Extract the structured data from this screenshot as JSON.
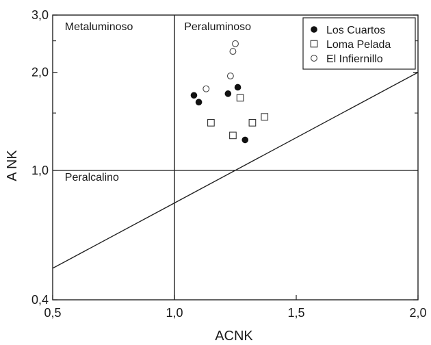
{
  "chart_data": {
    "type": "scatter",
    "xlabel": "ACNK",
    "ylabel": "A NK",
    "xlim": [
      0.5,
      2.0
    ],
    "ylim": [
      0.4,
      3.0
    ],
    "x_scale": "linear",
    "y_scale": "log",
    "x_ticks": [
      {
        "value": 0.5,
        "label": "0,5"
      },
      {
        "value": 1.0,
        "label": "1,0"
      },
      {
        "value": 1.5,
        "label": "1,5"
      },
      {
        "value": 2.0,
        "label": "2,0"
      }
    ],
    "y_ticks": [
      {
        "value": 0.4,
        "label": "0,4"
      },
      {
        "value": 1.0,
        "label": "1,0"
      },
      {
        "value": 2.0,
        "label": "2,0"
      },
      {
        "value": 3.0,
        "label": "3,0"
      }
    ],
    "y_minor_ticks": [
      1.5,
      2.5
    ],
    "grid": false,
    "legend_position": "top-right",
    "region_labels": [
      {
        "text": "Metaluminoso",
        "x": 0.55,
        "y": 2.7
      },
      {
        "text": "Peraluminoso",
        "x": 1.04,
        "y": 2.7
      },
      {
        "text": "Peralcalino",
        "x": 0.55,
        "y": 0.93
      }
    ],
    "reference_lines": [
      {
        "name": "vertical",
        "x1": 1.0,
        "y1": 0.4,
        "x2": 1.0,
        "y2": 3.0
      },
      {
        "name": "horizontal",
        "x1": 0.5,
        "y1": 1.0,
        "x2": 2.0,
        "y2": 1.0
      },
      {
        "name": "diagonal",
        "x1": 0.5,
        "y1": 0.5,
        "x2": 2.0,
        "y2": 2.0
      }
    ],
    "series": [
      {
        "name": "Los Cuartos",
        "marker": "filled-circle",
        "points": [
          {
            "x": 1.08,
            "y": 1.7
          },
          {
            "x": 1.1,
            "y": 1.62
          },
          {
            "x": 1.22,
            "y": 1.72
          },
          {
            "x": 1.26,
            "y": 1.8
          },
          {
            "x": 1.29,
            "y": 1.24
          }
        ]
      },
      {
        "name": "Loma Pelada",
        "marker": "open-square",
        "points": [
          {
            "x": 1.15,
            "y": 1.4
          },
          {
            "x": 1.24,
            "y": 1.28
          },
          {
            "x": 1.27,
            "y": 1.67
          },
          {
            "x": 1.32,
            "y": 1.4
          },
          {
            "x": 1.37,
            "y": 1.46
          }
        ]
      },
      {
        "name": "El Infiernillo",
        "marker": "open-circle",
        "points": [
          {
            "x": 1.13,
            "y": 1.78
          },
          {
            "x": 1.23,
            "y": 1.95
          },
          {
            "x": 1.24,
            "y": 2.32
          },
          {
            "x": 1.25,
            "y": 2.45
          }
        ]
      }
    ]
  }
}
